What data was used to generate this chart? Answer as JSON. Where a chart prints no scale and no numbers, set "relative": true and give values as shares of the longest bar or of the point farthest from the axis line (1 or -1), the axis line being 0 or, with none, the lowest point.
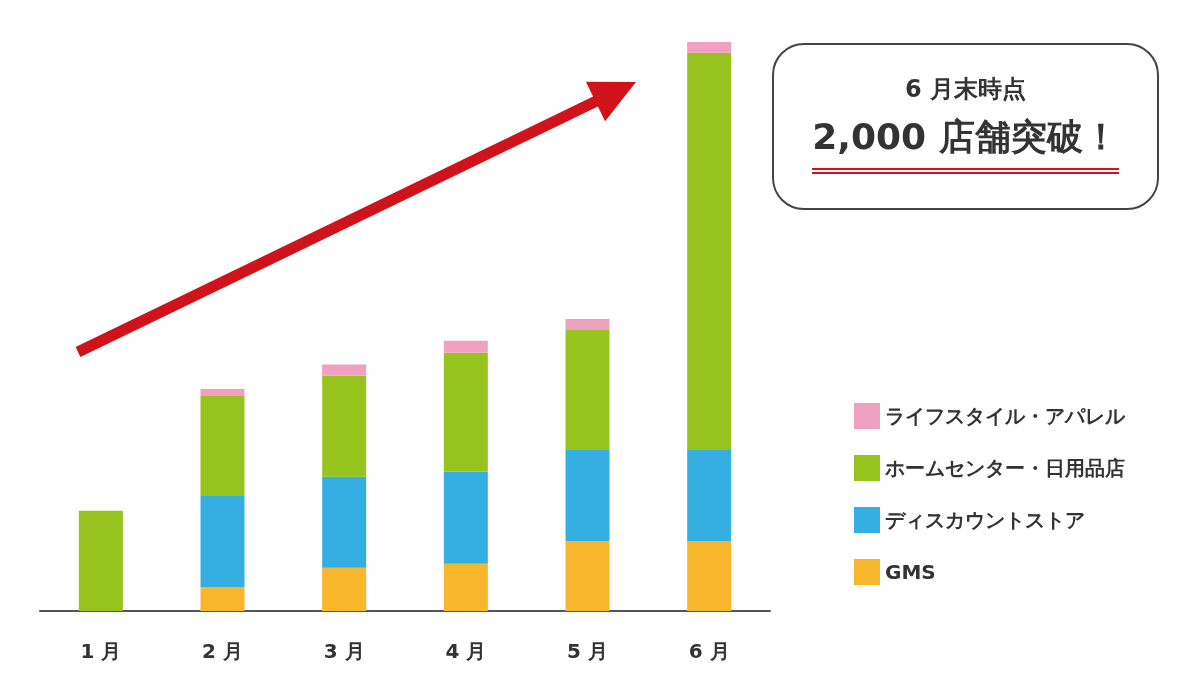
{
  "chart_data": {
    "type": "bar",
    "stacked": true,
    "relative": true,
    "categories": [
      "1 月",
      "2 月",
      "3 月",
      "4 月",
      "5 月",
      "6 月"
    ],
    "series": [
      {
        "name": "GMS",
        "color": "#f8b62d",
        "values": [
          0,
          0.042,
          0.076,
          0.083,
          0.123,
          0.123
        ]
      },
      {
        "name": "ディスカウントストア",
        "color": "#35aee2",
        "values": [
          0,
          0.16,
          0.16,
          0.162,
          0.16,
          0.16
        ]
      },
      {
        "name": "ホームセンター・日用品店",
        "color": "#96c31e",
        "values": [
          0.176,
          0.176,
          0.178,
          0.209,
          0.211,
          0.698
        ]
      },
      {
        "name": "ライフスタイル・アパレル",
        "color": "#f0a0c0",
        "values": [
          0,
          0.012,
          0.019,
          0.021,
          0.019,
          0.019
        ]
      }
    ],
    "legend": "right",
    "grid": false,
    "annotations": [
      "6 月末時点",
      "2,000 店舗突破！"
    ]
  }
}
